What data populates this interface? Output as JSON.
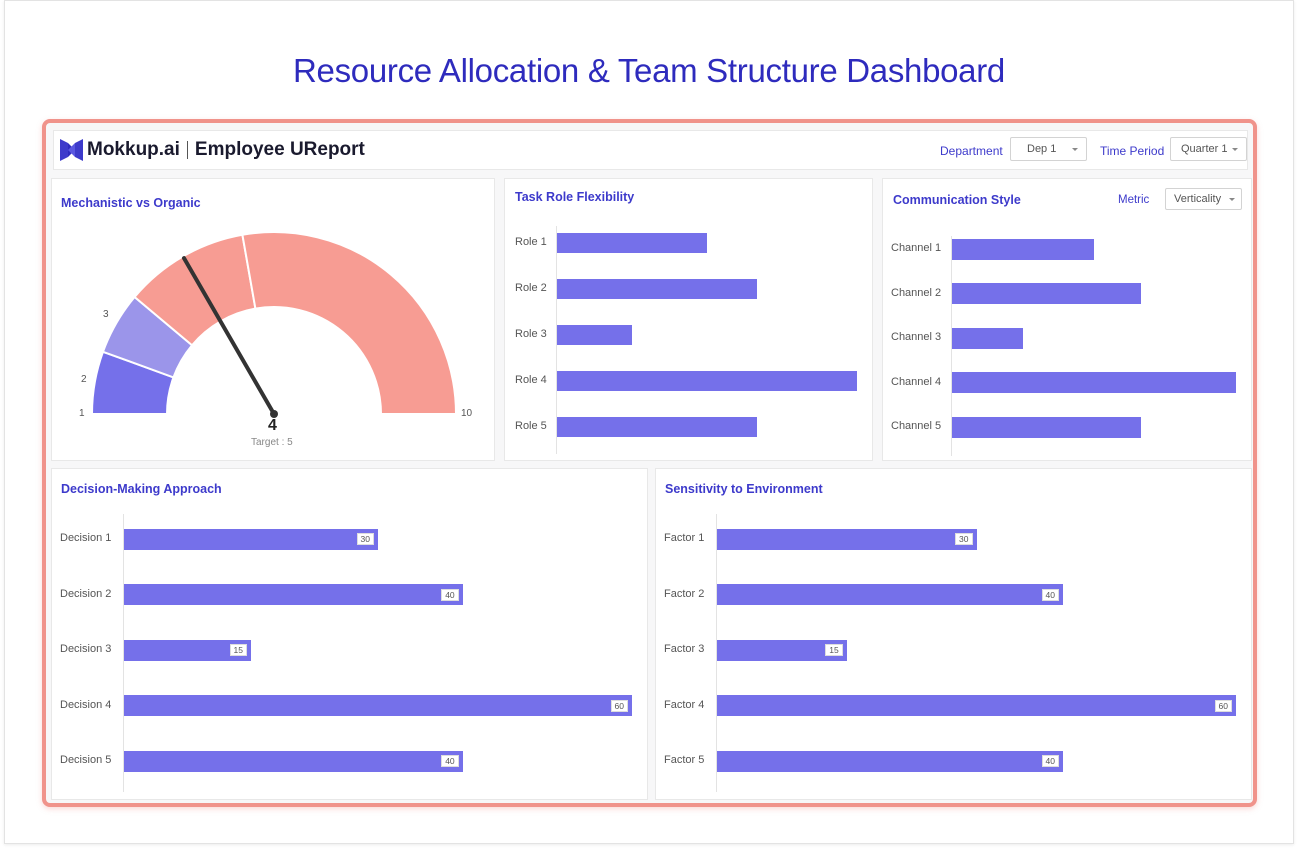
{
  "page": {
    "title": "Resource Allocation & Team Structure Dashboard"
  },
  "header": {
    "brand": "Mokkup.ai",
    "report_title": "Employee UReport",
    "department_label": "Department",
    "department_value": "Dep 1",
    "time_period_label": "Time Period",
    "time_period_value": "Quarter 1"
  },
  "colors": {
    "accent": "#3d3acb",
    "bar": "#7570ea",
    "gauge_low": "#7570ea",
    "gauge_mid": "#9b95ea",
    "gauge_high": "#f79c93",
    "frame": "#f0938b"
  },
  "gauge": {
    "title": "Mechanistic vs Organic",
    "value_text": "4",
    "target_text": "Target : 5",
    "ticks": [
      "1",
      "2",
      "3",
      "10"
    ],
    "chart_data": {
      "type": "gauge",
      "min": 1,
      "max": 10,
      "value": 4,
      "target": 5,
      "bands": [
        {
          "from": 1,
          "to": 2,
          "color": "#7570ea"
        },
        {
          "from": 2,
          "to": 3,
          "color": "#9b95ea"
        },
        {
          "from": 3,
          "to": 5,
          "color": "#f79c93"
        },
        {
          "from": 5,
          "to": 10,
          "color": "#f79c93"
        }
      ]
    }
  },
  "task_role": {
    "title": "Task Role Flexibility",
    "categories": [
      "Role 1",
      "Role 2",
      "Role 3",
      "Role 4",
      "Role 5"
    ],
    "chart_data": {
      "type": "bar",
      "orientation": "horizontal",
      "categories": [
        "Role 1",
        "Role 2",
        "Role 3",
        "Role 4",
        "Role 5"
      ],
      "values": [
        30,
        40,
        15,
        60,
        40
      ],
      "xlim": [
        0,
        60
      ]
    }
  },
  "communication": {
    "title": "Communication Style",
    "metric_label": "Metric",
    "metric_value": "Verticality",
    "categories": [
      "Channel 1",
      "Channel 2",
      "Channel 3",
      "Channel 4",
      "Channel 5"
    ],
    "chart_data": {
      "type": "bar",
      "orientation": "horizontal",
      "categories": [
        "Channel 1",
        "Channel 2",
        "Channel 3",
        "Channel 4",
        "Channel 5"
      ],
      "values": [
        30,
        40,
        15,
        60,
        40
      ],
      "xlim": [
        0,
        60
      ]
    }
  },
  "decision": {
    "title": "Decision-Making Approach",
    "categories": [
      "Decision 1",
      "Decision 2",
      "Decision 3",
      "Decision 4",
      "Decision 5"
    ],
    "chart_data": {
      "type": "bar",
      "orientation": "horizontal",
      "categories": [
        "Decision 1",
        "Decision 2",
        "Decision 3",
        "Decision 4",
        "Decision 5"
      ],
      "values": [
        30,
        40,
        15,
        60,
        40
      ],
      "xlim": [
        0,
        60
      ]
    }
  },
  "sensitivity": {
    "title": "Sensitivity to Environment",
    "categories": [
      "Factor 1",
      "Factor 2",
      "Factor 3",
      "Factor 4",
      "Factor 5"
    ],
    "chart_data": {
      "type": "bar",
      "orientation": "horizontal",
      "categories": [
        "Factor 1",
        "Factor 2",
        "Factor 3",
        "Factor 4",
        "Factor 5"
      ],
      "values": [
        30,
        40,
        15,
        60,
        40
      ],
      "xlim": [
        0,
        60
      ]
    }
  }
}
